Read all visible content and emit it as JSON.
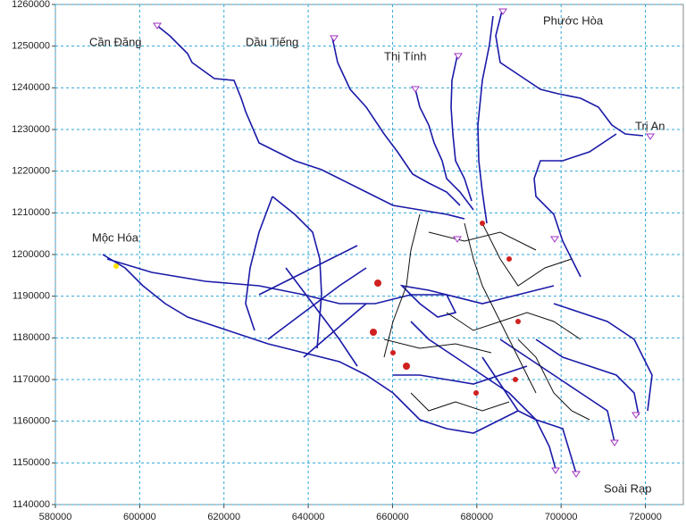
{
  "axes": {
    "xlim": [
      580000,
      729000
    ],
    "ylim": [
      1140000,
      1260000
    ],
    "xticks": [
      580000,
      600000,
      620000,
      640000,
      660000,
      680000,
      700000,
      720000
    ],
    "yticks": [
      1140000,
      1150000,
      1160000,
      1170000,
      1180000,
      1190000,
      1200000,
      1210000,
      1220000,
      1230000,
      1240000,
      1250000,
      1260000
    ]
  },
  "places": [
    "Cần Đăng",
    "Dầu Tiếng",
    "Thị Tính",
    "Phước Hòa",
    "Trị An",
    "Mộc Hóa",
    "Soài Rạp"
  ]
}
